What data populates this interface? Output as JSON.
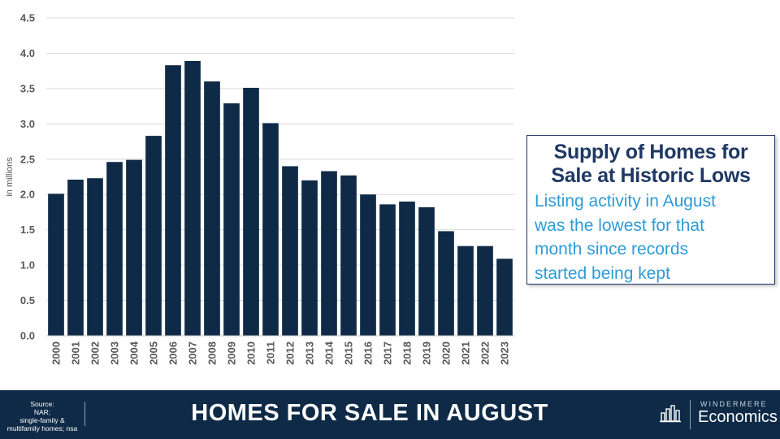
{
  "chart_data": {
    "type": "bar",
    "categories": [
      "2000",
      "2001",
      "2002",
      "2003",
      "2004",
      "2005",
      "2006",
      "2007",
      "2008",
      "2009",
      "2010",
      "2011",
      "2012",
      "2013",
      "2014",
      "2015",
      "2016",
      "2017",
      "2018",
      "2019",
      "2020",
      "2021",
      "2022",
      "2023"
    ],
    "values": [
      2.01,
      2.21,
      2.23,
      2.46,
      2.49,
      2.83,
      3.83,
      3.89,
      3.6,
      3.29,
      3.51,
      3.01,
      2.4,
      2.2,
      2.33,
      2.27,
      2.0,
      1.86,
      1.9,
      1.82,
      1.48,
      1.27,
      1.27,
      1.09
    ],
    "ylabel": "in millions",
    "ylim": [
      0,
      4.5
    ],
    "yticks": [
      "0.0",
      "0.5",
      "1.0",
      "1.5",
      "2.0",
      "2.5",
      "3.0",
      "3.5",
      "4.0",
      "4.5"
    ],
    "bar_color": "#0e2a47",
    "grid": true
  },
  "callout": {
    "title_line1": "Supply of Homes for",
    "title_line2": "Sale at Historic Lows",
    "body_lines": [
      "Listing activity in August",
      "was the lowest for that",
      "month since records",
      "started being kept"
    ]
  },
  "footer": {
    "source_lines": [
      "Source:",
      "NAR;",
      "single-family &",
      "multifamily homes; nsa"
    ],
    "title": "HOMES FOR SALE IN AUGUST",
    "logo_top": "WINDERMERE",
    "logo_bottom": "Economics",
    "logo_icon": "bar-chart-icon"
  }
}
